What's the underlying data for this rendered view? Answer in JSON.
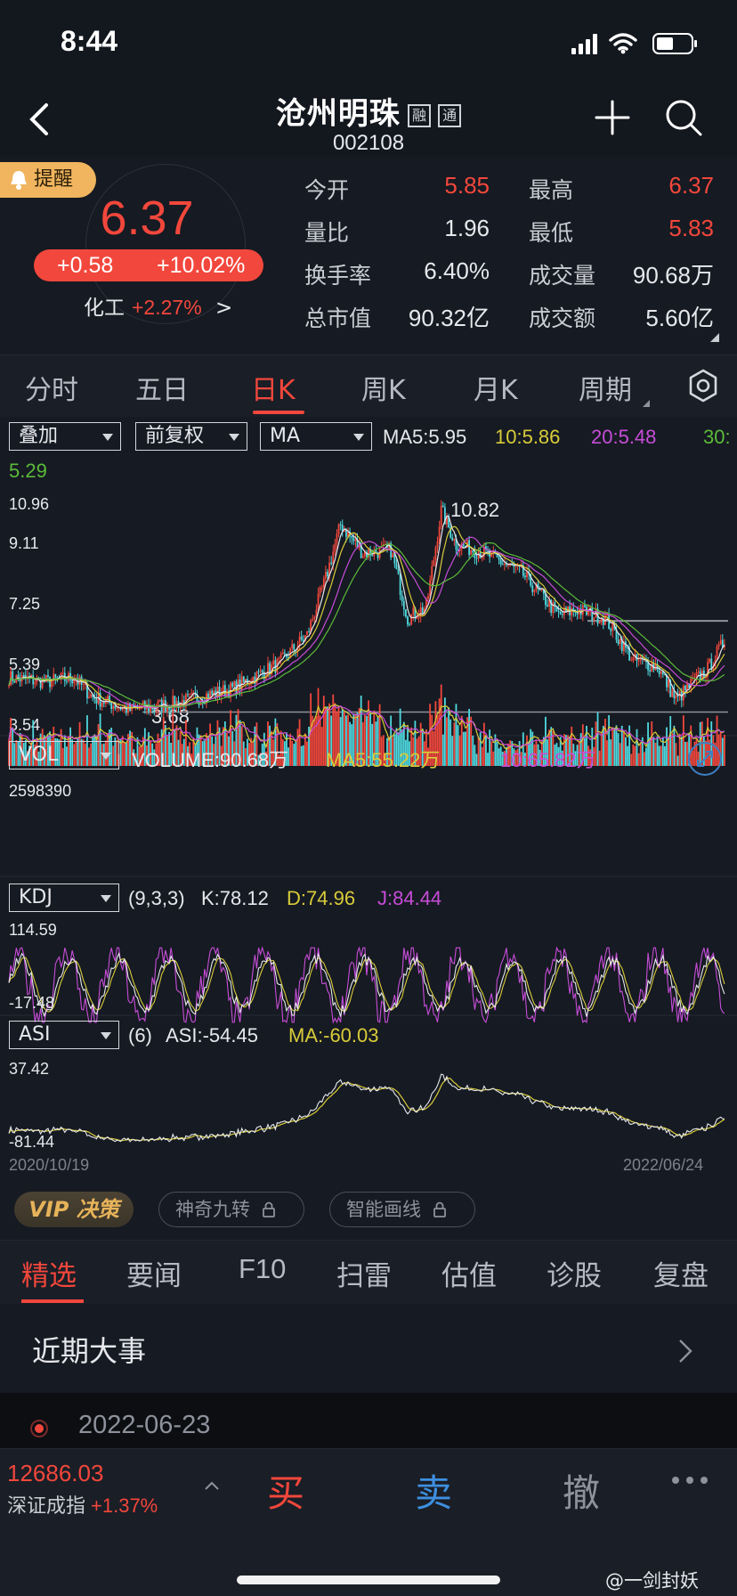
{
  "status_bar": {
    "time": "8:44"
  },
  "stock": {
    "name": "沧州明珠",
    "tags": [
      "融",
      "通"
    ],
    "code": "002108"
  },
  "quote": {
    "remind_label": "提醒",
    "last_price": "6.37",
    "change": "+0.58",
    "change_pct": "+10.02%",
    "sector_name": "化工",
    "sector_pct": "+2.27%",
    "sector_arrow": ">",
    "stats": [
      {
        "label": "今开",
        "value": "5.85",
        "color": "#f2473c"
      },
      {
        "label": "最高",
        "value": "6.37",
        "color": "#f2473c"
      },
      {
        "label": "量比",
        "value": "1.96",
        "color": "#e6e8ec"
      },
      {
        "label": "最低",
        "value": "5.83",
        "color": "#f2473c"
      },
      {
        "label": "换手率",
        "value": "6.40%",
        "color": "#e6e8ec"
      },
      {
        "label": "成交量",
        "value": "90.68万",
        "color": "#e6e8ec"
      },
      {
        "label": "总市值",
        "value": "90.32亿",
        "color": "#e6e8ec"
      },
      {
        "label": "成交额",
        "value": "5.60亿",
        "color": "#e6e8ec"
      }
    ]
  },
  "period_tabs": [
    "分时",
    "五日",
    "日K",
    "周K",
    "月K",
    "周期"
  ],
  "active_period": "日K",
  "chart_controls": {
    "overlay": "叠加",
    "adjust": "前复权",
    "indicator": "MA",
    "ma5_label": "MA5:",
    "ma5_value": "5.95",
    "ma10": "10:5.86",
    "ma20": "20:5.48",
    "ma30_label": "30:",
    "ma30_value": "5.29"
  },
  "main_chart": {
    "axis_top": "10.96",
    "axis_2": "9.11",
    "axis_3": "7.25",
    "axis_4": "5.39",
    "axis_bottom": "3.54",
    "high_label": "10.82",
    "low_label": "3.68"
  },
  "volume": {
    "selector": "VOL",
    "label": "VOLUME:90.68万",
    "ma5": "MA5:55.22万",
    "ma10": "10:65.82万",
    "axis_top": "2598390"
  },
  "kdj": {
    "selector": "KDJ",
    "params": "(9,3,3)",
    "k": "K:78.12",
    "d": "D:74.96",
    "j": "J:84.44",
    "axis_top": "114.59",
    "axis_bottom": "-17.48"
  },
  "asi": {
    "selector": "ASI",
    "params": "(6)",
    "asi": "ASI:-54.45",
    "ma": "MA:-60.03",
    "axis_top": "37.42",
    "axis_bottom": "-81.44"
  },
  "date_range": {
    "start": "2020/10/19",
    "end": "2022/06/24"
  },
  "features": {
    "vip": "VIP 决策",
    "nine_turn": "神奇九转",
    "smart_line": "智能画线"
  },
  "news_tabs": [
    "精选",
    "要闻",
    "F10",
    "扫雷",
    "估值",
    "诊股",
    "复盘"
  ],
  "active_news_tab": "精选",
  "events": {
    "title": "近期大事",
    "first_date": "2022-06-23"
  },
  "bottom": {
    "index_value": "12686.03",
    "index_name": "深证成指",
    "index_pct": "+1.37%",
    "buy": "买",
    "sell": "卖",
    "cancel": "撤",
    "watermark": "@一剑封妖"
  },
  "colors": {
    "up": "#f2473c",
    "down": "#4fd8de",
    "ma5": "#e6e8ec",
    "ma10": "#d8cc3a",
    "ma20": "#c64dd8",
    "ma30": "#5bbb3a"
  }
}
